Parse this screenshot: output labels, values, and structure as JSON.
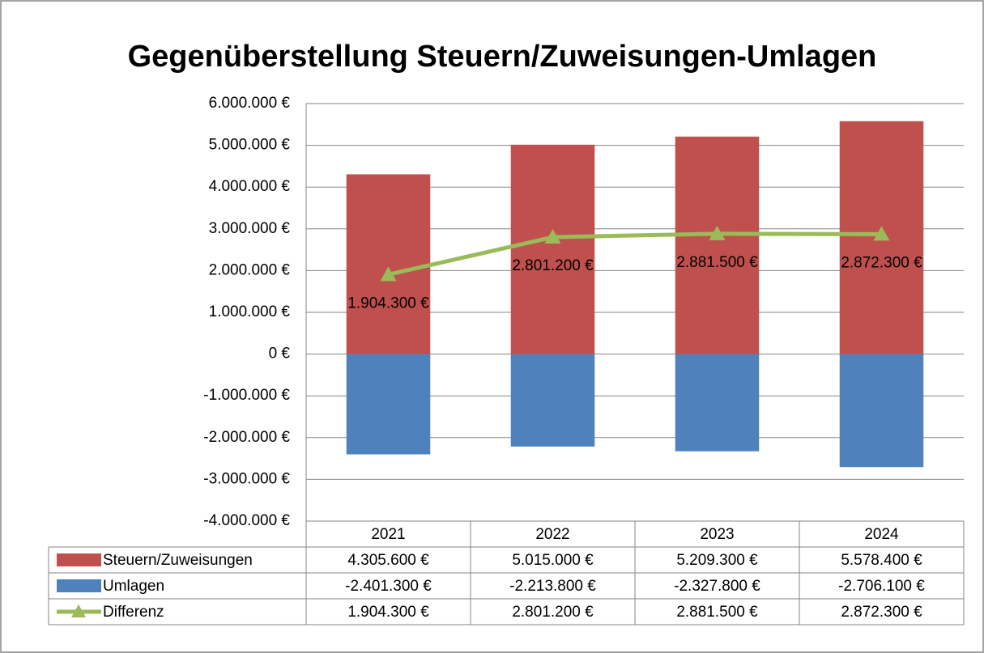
{
  "chart_data": {
    "type": "bar-line-table",
    "title": "Gegenüberstellung Steuern/Zuweisungen-Umlagen",
    "categories": [
      "2021",
      "2022",
      "2023",
      "2024"
    ],
    "series": [
      {
        "name": "Steuern/Zuweisungen",
        "type": "bar",
        "color": "#c0504d",
        "values": [
          4305600,
          5015000,
          5209300,
          5578400
        ],
        "value_labels": [
          "4.305.600 €",
          "5.015.000 €",
          "5.209.300 €",
          "5.578.400 €"
        ]
      },
      {
        "name": "Umlagen",
        "type": "bar",
        "color": "#4f81bd",
        "values": [
          -2401300,
          -2213800,
          -2327800,
          -2706100
        ],
        "value_labels": [
          "-2.401.300 €",
          "-2.213.800 €",
          "-2.327.800 €",
          "-2.706.100 €"
        ]
      },
      {
        "name": "Differenz",
        "type": "line",
        "color": "#9bbb59",
        "values": [
          1904300,
          2801200,
          2881500,
          2872300
        ],
        "value_labels": [
          "1.904.300 €",
          "2.801.200 €",
          "2.881.500 €",
          "2.872.300 €"
        ]
      }
    ],
    "ylim": [
      -4000000,
      6000000
    ],
    "yticks": [
      {
        "value": -4000000,
        "label": "-4.000.000 €"
      },
      {
        "value": -3000000,
        "label": "-3.000.000 €"
      },
      {
        "value": -2000000,
        "label": "-2.000.000 €"
      },
      {
        "value": -1000000,
        "label": "-1.000.000 €"
      },
      {
        "value": 0,
        "label": "0 €"
      },
      {
        "value": 1000000,
        "label": "1.000.000 €"
      },
      {
        "value": 2000000,
        "label": "2.000.000 €"
      },
      {
        "value": 3000000,
        "label": "3.000.000 €"
      },
      {
        "value": 4000000,
        "label": "4.000.000 €"
      },
      {
        "value": 5000000,
        "label": "5.000.000 €"
      },
      {
        "value": 6000000,
        "label": "6.000.000 €"
      }
    ],
    "grid": true
  }
}
